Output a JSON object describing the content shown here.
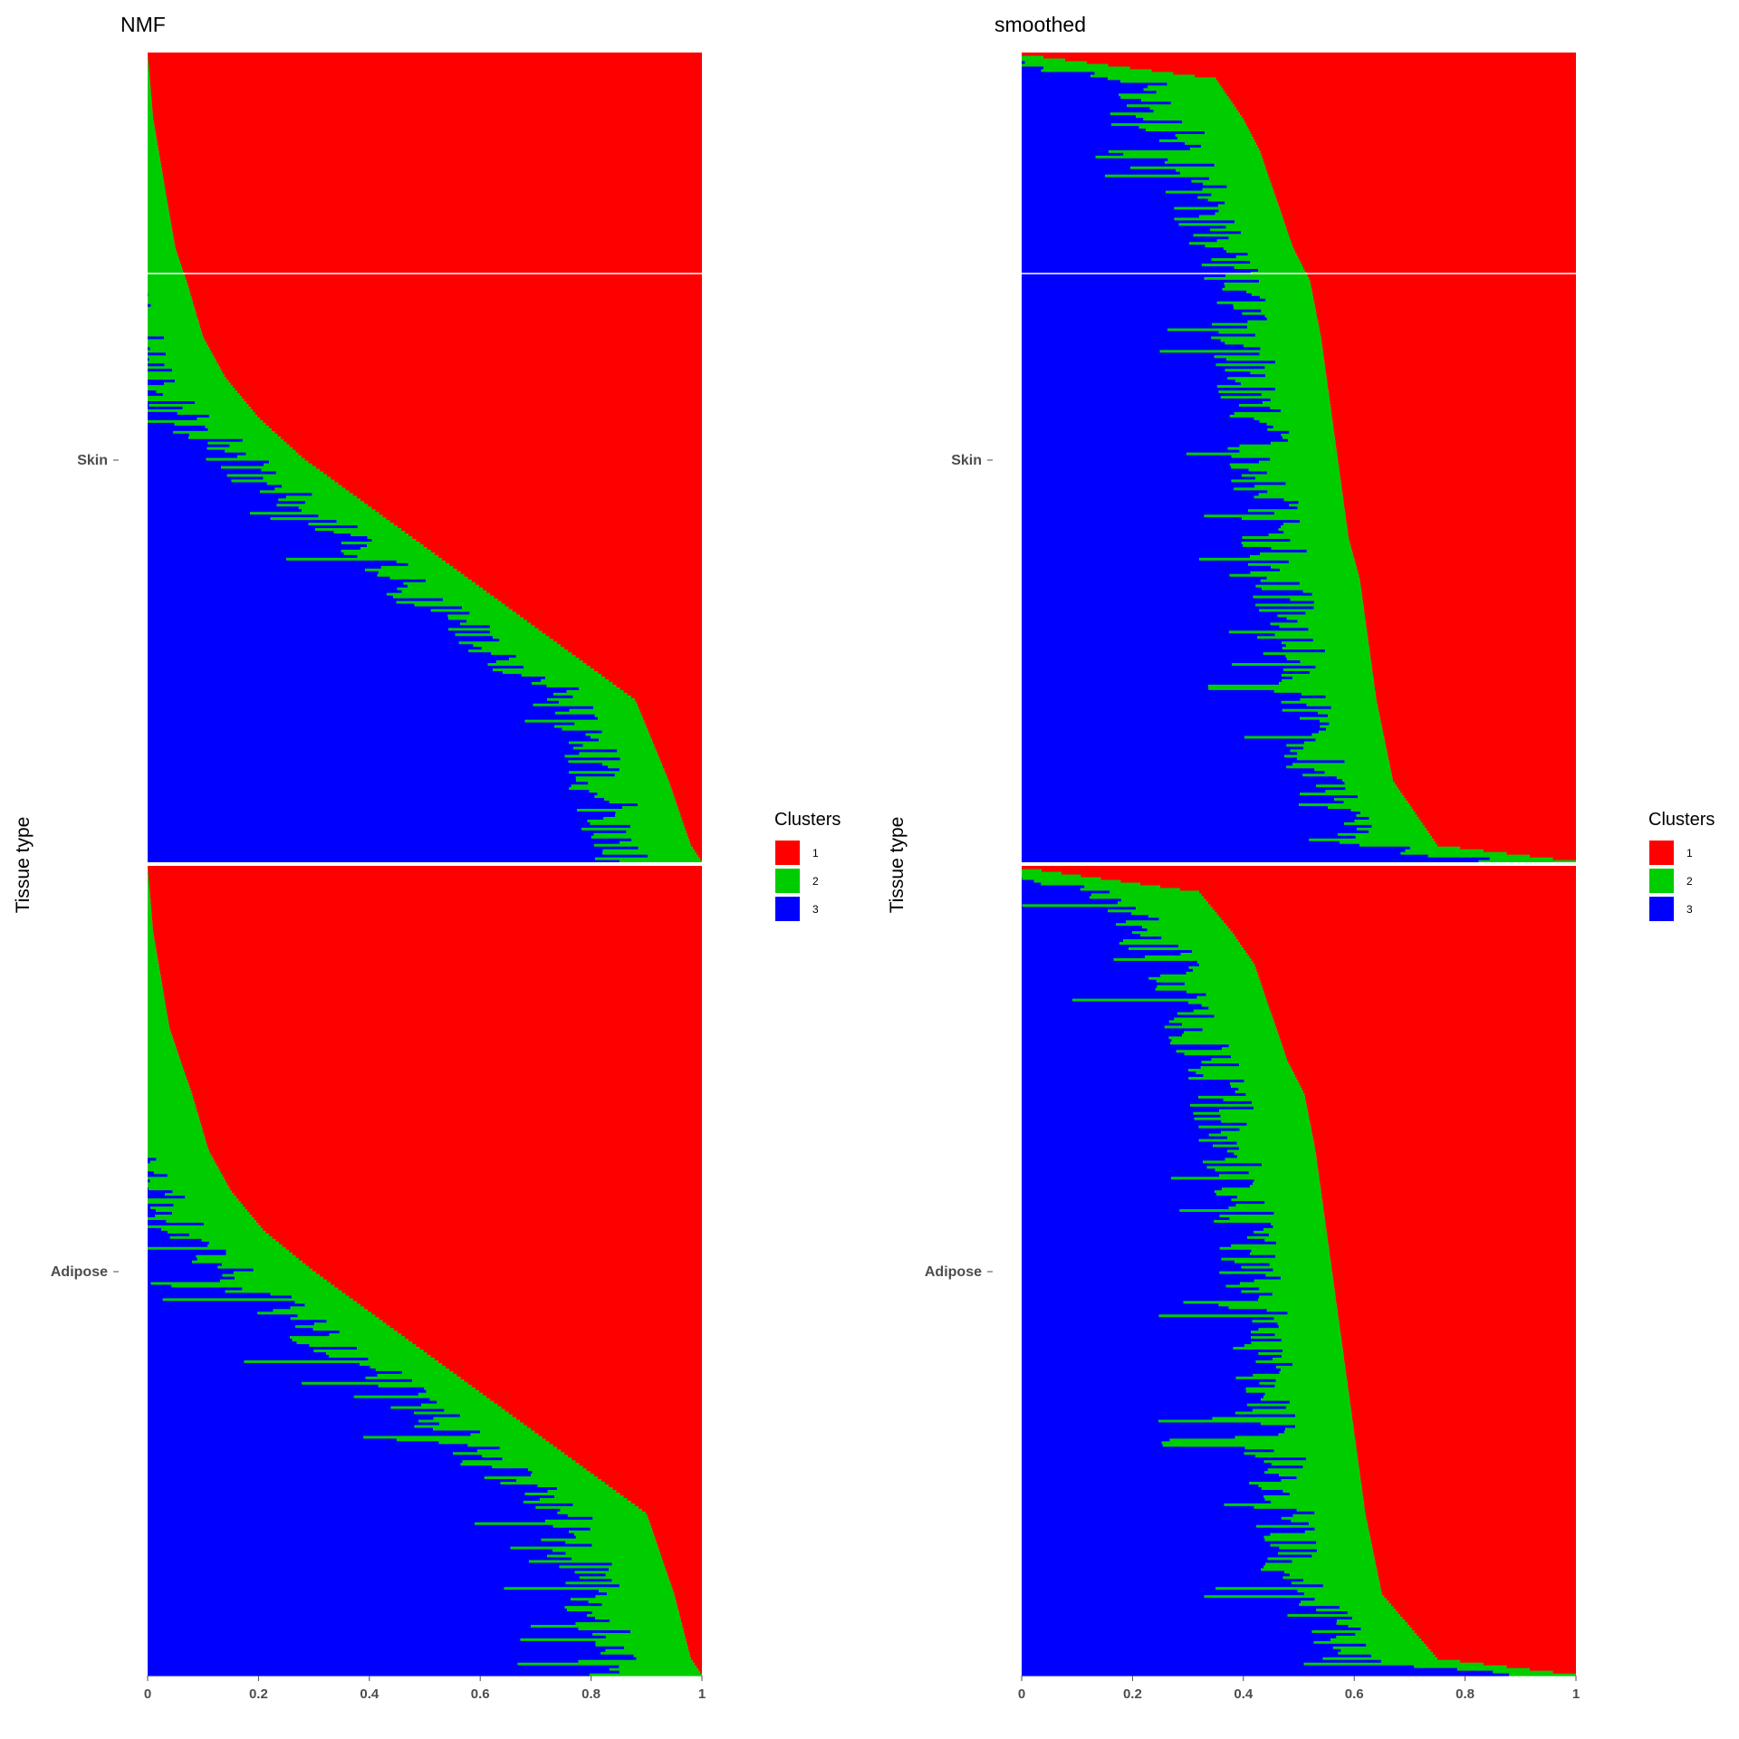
{
  "chart_data": [
    {
      "type": "bar",
      "orientation": "horizontal-stacked",
      "title": "NMF",
      "ylabel": "Tissue type",
      "xlabel": "",
      "xlim": [
        0,
        1
      ],
      "x_ticks": [
        "0",
        "0.2",
        "0.4",
        "0.6",
        "0.8",
        "1"
      ],
      "y_ticks": [
        "Skin",
        "Adipose"
      ],
      "legend": {
        "title": "Clusters",
        "position": "right",
        "labels": [
          "1",
          "2",
          "3"
        ]
      },
      "colors": {
        "1": "#ff0000",
        "2": "#00cd00",
        "3": "#0000ff"
      },
      "groups": [
        {
          "name": "Skin",
          "cluster1_sorted_ascending": {
            "n": 300,
            "quantiles": [
              0.0,
              0.02,
              0.1,
              0.2,
              0.25,
              0.3,
              0.35,
              0.4,
              0.45,
              0.5,
              0.55,
              0.6,
              0.65,
              0.72,
              0.76,
              0.8,
              0.84,
              0.88,
              0.92,
              0.97,
              1.0
            ],
            "probs": [
              0.0,
              0.02,
              0.06,
              0.12,
              0.22,
              0.32,
              0.42,
              0.52,
              0.62,
              0.72,
              0.8,
              0.86,
              0.9,
              0.93,
              0.95,
              0.96,
              0.97,
              0.98,
              0.99,
              0.996,
              1.0
            ]
          },
          "cluster2_band": {
            "min": 0.05,
            "max": 0.3,
            "typical": 0.13
          }
        },
        {
          "name": "Adipose",
          "cluster1_sorted_ascending": {
            "n": 300,
            "quantiles": [
              0.0,
              0.02,
              0.1,
              0.2,
              0.25,
              0.3,
              0.35,
              0.4,
              0.45,
              0.5,
              0.55,
              0.6,
              0.65,
              0.72,
              0.76,
              0.8,
              0.84,
              0.88,
              0.92,
              0.97,
              1.0
            ],
            "probs": [
              0.0,
              0.02,
              0.05,
              0.1,
              0.2,
              0.3,
              0.4,
              0.5,
              0.6,
              0.7,
              0.79,
              0.85,
              0.89,
              0.92,
              0.94,
              0.96,
              0.97,
              0.98,
              0.99,
              0.996,
              1.0
            ]
          },
          "cluster2_band": {
            "min": 0.05,
            "max": 0.35,
            "typical": 0.15
          }
        }
      ]
    },
    {
      "type": "bar",
      "orientation": "horizontal-stacked",
      "title": "smoothed",
      "ylabel": "Tissue type",
      "xlabel": "",
      "xlim": [
        0,
        1
      ],
      "x_ticks": [
        "0",
        "0.2",
        "0.4",
        "0.6",
        "0.8",
        "1"
      ],
      "y_ticks": [
        "Skin",
        "Adipose"
      ],
      "legend": {
        "title": "Clusters",
        "position": "right",
        "labels": [
          "1",
          "2",
          "3"
        ]
      },
      "colors": {
        "1": "#ff0000",
        "2": "#00cd00",
        "3": "#0000ff"
      },
      "groups": [
        {
          "name": "Skin",
          "cluster1_sorted_ascending": {
            "n": 300,
            "quantiles": [
              0.0,
              0.02,
              0.1,
              0.2,
              0.25,
              0.3,
              0.35,
              0.4,
              0.45,
              0.5,
              0.55,
              0.6,
              0.65,
              0.72,
              0.76,
              0.8,
              0.84,
              0.88,
              0.92,
              0.97,
              1.0
            ],
            "probs": [
              0.0,
              0.25,
              0.33,
              0.36,
              0.37,
              0.38,
              0.39,
              0.41,
              0.42,
              0.43,
              0.44,
              0.45,
              0.46,
              0.48,
              0.51,
              0.53,
              0.55,
              0.57,
              0.6,
              0.65,
              1.0
            ]
          },
          "cluster2_band": {
            "min": 0.05,
            "max": 0.3,
            "typical": 0.14
          }
        },
        {
          "name": "Adipose",
          "cluster1_sorted_ascending": {
            "n": 300,
            "quantiles": [
              0.0,
              0.02,
              0.1,
              0.2,
              0.25,
              0.3,
              0.35,
              0.4,
              0.45,
              0.5,
              0.55,
              0.6,
              0.65,
              0.72,
              0.76,
              0.8,
              0.84,
              0.88,
              0.92,
              0.97,
              1.0
            ],
            "probs": [
              0.0,
              0.25,
              0.35,
              0.38,
              0.39,
              0.4,
              0.41,
              0.42,
              0.43,
              0.44,
              0.45,
              0.46,
              0.47,
              0.49,
              0.52,
              0.54,
              0.56,
              0.58,
              0.62,
              0.68,
              1.0
            ]
          },
          "cluster2_band": {
            "min": 0.05,
            "max": 0.35,
            "typical": 0.15
          }
        }
      ]
    }
  ]
}
